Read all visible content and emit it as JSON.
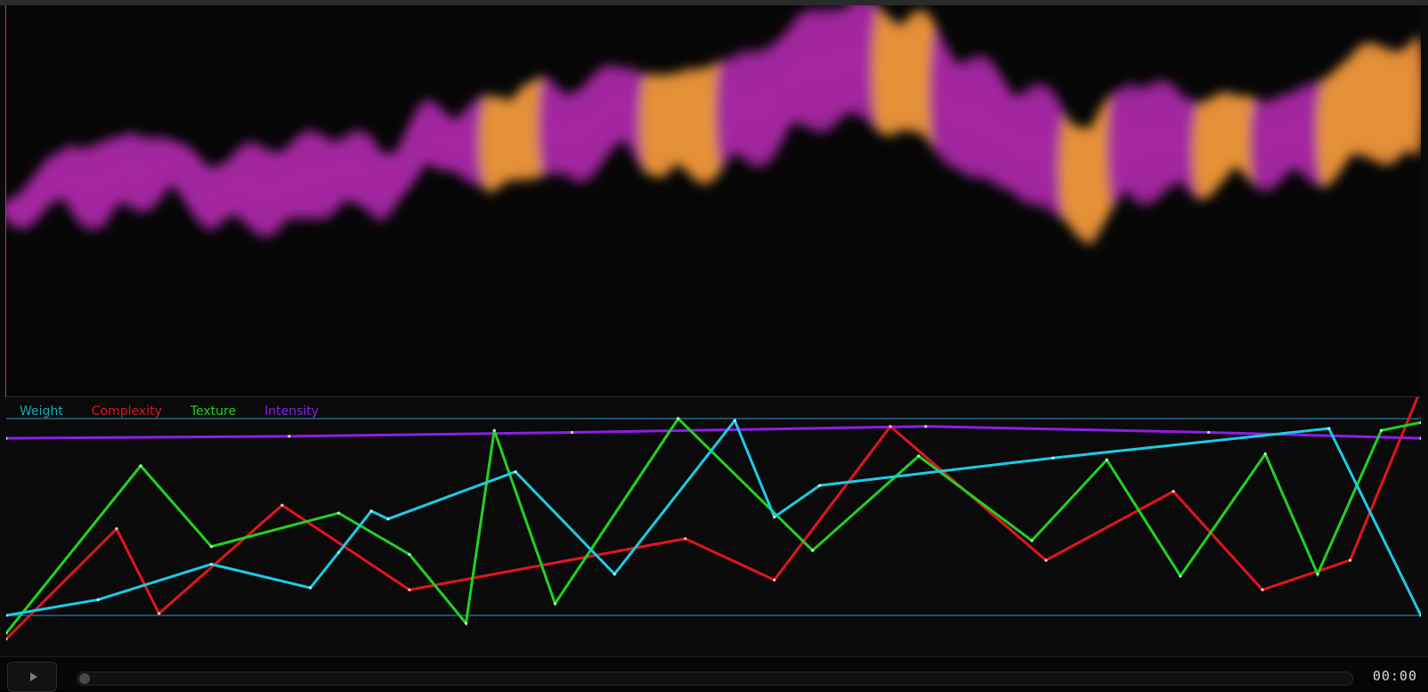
{
  "legend": {
    "items": [
      {
        "label": "Weight",
        "color": "#1aa6b7"
      },
      {
        "label": "Complexity",
        "color": "#e3141e"
      },
      {
        "label": "Texture",
        "color": "#1ed41e"
      },
      {
        "label": "Intensity",
        "color": "#8c1ee6"
      }
    ]
  },
  "player": {
    "time": "00:00",
    "progress": 0,
    "play_icon": "play-icon"
  },
  "chart_data": {
    "type": "line",
    "title": "",
    "xlabel": "",
    "ylabel": "",
    "x": [
      0,
      1,
      2,
      3,
      4,
      5,
      6,
      7,
      8,
      9,
      10,
      11,
      12,
      13,
      14,
      15,
      16
    ],
    "ylim": [
      0,
      1
    ],
    "grid": false,
    "legend_position": "top-left",
    "series": [
      {
        "name": "Weight",
        "color": "#1ccbe6",
        "points": [
          [
            0,
            0.0
          ],
          [
            6.5,
            0.08
          ],
          [
            14.5,
            0.26
          ],
          [
            21.5,
            0.14
          ],
          [
            23.5,
            0.32
          ],
          [
            25.8,
            0.53
          ],
          [
            27,
            0.49
          ],
          [
            36,
            0.73
          ],
          [
            43,
            0.21
          ],
          [
            51.5,
            0.99
          ],
          [
            54.3,
            0.5
          ],
          [
            57.5,
            0.66
          ],
          [
            74,
            0.8
          ],
          [
            93.5,
            0.95
          ],
          [
            100,
            0.0
          ]
        ]
      },
      {
        "name": "Complexity",
        "color": "#e3141e",
        "points": [
          [
            0,
            -0.12
          ],
          [
            7.8,
            0.44
          ],
          [
            10.8,
            0.01
          ],
          [
            19.5,
            0.56
          ],
          [
            28.5,
            0.13
          ],
          [
            48,
            0.39
          ],
          [
            54.3,
            0.18
          ],
          [
            62.5,
            0.96
          ],
          [
            73.5,
            0.28
          ],
          [
            82.5,
            0.63
          ],
          [
            88.8,
            0.13
          ],
          [
            95,
            0.28
          ],
          [
            100,
            1.15
          ]
        ]
      },
      {
        "name": "Texture",
        "color": "#1ed41e",
        "points": [
          [
            0,
            -0.09
          ],
          [
            9.5,
            0.76
          ],
          [
            14.5,
            0.35
          ],
          [
            23.5,
            0.52
          ],
          [
            28.5,
            0.31
          ],
          [
            32.5,
            -0.04
          ],
          [
            34.5,
            0.94
          ],
          [
            38.8,
            0.06
          ],
          [
            47.5,
            1.0
          ],
          [
            57,
            0.33
          ],
          [
            64.5,
            0.81
          ],
          [
            72.5,
            0.38
          ],
          [
            77.8,
            0.79
          ],
          [
            83,
            0.2
          ],
          [
            89,
            0.82
          ],
          [
            92.7,
            0.21
          ],
          [
            97.2,
            0.94
          ],
          [
            100,
            0.98
          ]
        ]
      },
      {
        "name": "Intensity",
        "color": "#8c1ee6",
        "points": [
          [
            0,
            0.9
          ],
          [
            20,
            0.91
          ],
          [
            40,
            0.93
          ],
          [
            65,
            0.96
          ],
          [
            85,
            0.93
          ],
          [
            100,
            0.9
          ]
        ]
      }
    ]
  }
}
